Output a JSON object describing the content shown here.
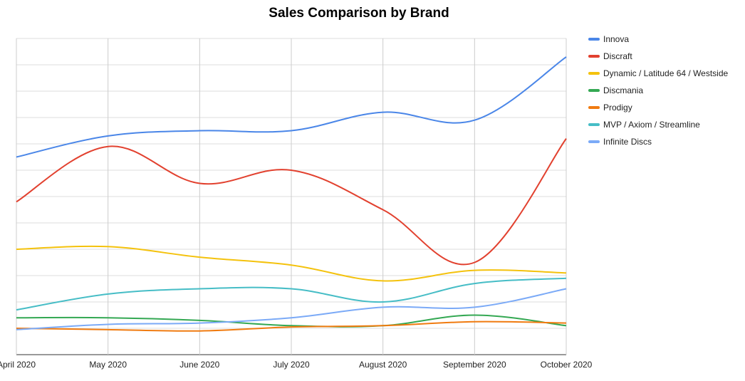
{
  "chart_data": {
    "type": "line",
    "title": "Sales Comparison by Brand",
    "xlabel": "",
    "ylabel": "",
    "categories": [
      "April 2020",
      "May 2020",
      "June 2020",
      "July 2020",
      "August 2020",
      "September 2020",
      "October 2020"
    ],
    "ylim": [
      0,
      120
    ],
    "grid": true,
    "legend_position": "right",
    "series": [
      {
        "name": "Innova",
        "color": "#4a86e8",
        "values": [
          75,
          83,
          85,
          85,
          92,
          89,
          113
        ]
      },
      {
        "name": "Discraft",
        "color": "#e2412f",
        "values": [
          58,
          79,
          65,
          70,
          55,
          35,
          82
        ]
      },
      {
        "name": "Dynamic / Latitude 64 / Westside",
        "color": "#f4c20d",
        "values": [
          40,
          41,
          37,
          34,
          28,
          32,
          31
        ]
      },
      {
        "name": "Discmania",
        "color": "#34a853",
        "values": [
          14,
          14,
          13,
          11,
          11,
          15,
          11
        ]
      },
      {
        "name": "Prodigy",
        "color": "#f07b10",
        "values": [
          10,
          9.5,
          9,
          10.5,
          11,
          12.5,
          12
        ]
      },
      {
        "name": "MVP / Axiom / Streamline",
        "color": "#46bdc6",
        "values": [
          17,
          23,
          25,
          25,
          20,
          27,
          29
        ]
      },
      {
        "name": "Infinite Discs",
        "color": "#7baaf7",
        "values": [
          9.5,
          11.5,
          12,
          14,
          18,
          18,
          25
        ]
      }
    ]
  }
}
